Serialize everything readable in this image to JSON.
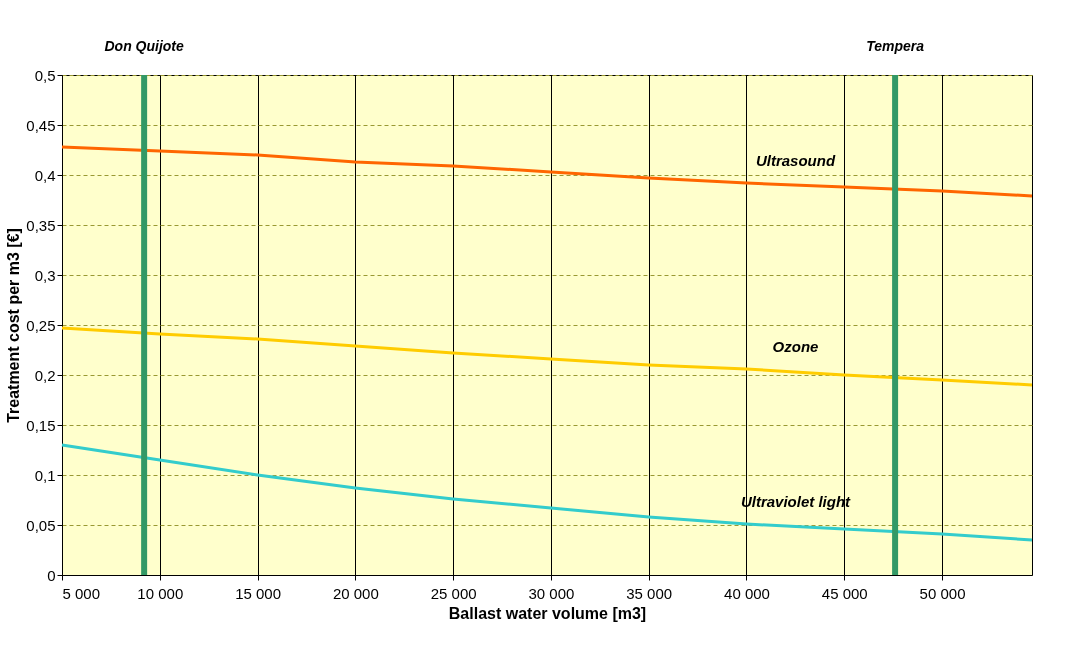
{
  "chart_data": {
    "type": "line",
    "xlabel": "Ballast water volume [m3]",
    "ylabel": "Treatment cost per m3  [€]",
    "x": [
      5000,
      10000,
      15000,
      20000,
      25000,
      30000,
      35000,
      40000,
      45000,
      50000,
      54600
    ],
    "series": [
      {
        "name": "Ultrasound",
        "color": "#ff6600",
        "values": [
          0.428,
          0.424,
          0.42,
          0.413,
          0.409,
          0.403,
          0.397,
          0.392,
          0.388,
          0.384,
          0.379
        ]
      },
      {
        "name": "Ozone",
        "color": "#ffcc00",
        "values": [
          0.247,
          0.241,
          0.236,
          0.229,
          0.222,
          0.216,
          0.21,
          0.206,
          0.2,
          0.195,
          0.19
        ]
      },
      {
        "name": "Ultraviolet light",
        "color": "#33cccc",
        "values": [
          0.13,
          0.115,
          0.1,
          0.087,
          0.076,
          0.067,
          0.058,
          0.051,
          0.046,
          0.041,
          0.035
        ]
      }
    ],
    "xlim": [
      5000,
      54600
    ],
    "xticks": [
      {
        "value": 5000,
        "label": "5 000"
      },
      {
        "value": 10000,
        "label": "10 000"
      },
      {
        "value": 15000,
        "label": "15 000"
      },
      {
        "value": 20000,
        "label": "20 000"
      },
      {
        "value": 25000,
        "label": "25 000"
      },
      {
        "value": 30000,
        "label": "30 000"
      },
      {
        "value": 35000,
        "label": "35 000"
      },
      {
        "value": 40000,
        "label": "40 000"
      },
      {
        "value": 45000,
        "label": "45 000"
      },
      {
        "value": 50000,
        "label": "50 000"
      }
    ],
    "ylim": [
      0,
      0.5
    ],
    "yticks": [
      0,
      {
        "value": 0.05,
        "label": "0,05"
      },
      {
        "value": 0.1,
        "label": "0,1"
      },
      {
        "value": 0.15,
        "label": "0,15"
      },
      {
        "value": 0.2,
        "label": "0,2"
      },
      {
        "value": 0.25,
        "label": "0,25"
      },
      {
        "value": 0.3,
        "label": "0,3"
      },
      {
        "value": 0.35,
        "label": "0,35"
      },
      {
        "value": 0.4,
        "label": "0,4"
      },
      {
        "value": 0.45,
        "label": "0,45"
      },
      {
        "value": 0.5,
        "label": "0,5"
      }
    ],
    "ref_lines": [
      {
        "axis": "x",
        "value": 9200,
        "label": "Don Quijote",
        "color": "#339966"
      },
      {
        "axis": "x",
        "value": 47600,
        "label": "Tempera",
        "color": "#339966"
      }
    ],
    "grid": true,
    "marker": "none",
    "line_style": "solid"
  }
}
